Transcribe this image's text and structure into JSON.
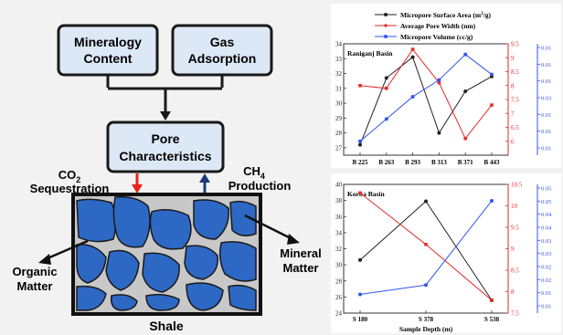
{
  "flowchart": {
    "box_mineralogy": [
      "Mineralogy",
      "Content"
    ],
    "box_gas": [
      "Gas",
      "Adsorption"
    ],
    "box_pore": [
      "Pore",
      "Characteristics"
    ],
    "co2_label": [
      "CO",
      "2",
      "Sequestration"
    ],
    "ch4_label": [
      "CH",
      "4",
      "Production"
    ],
    "organic_label": [
      "Organic",
      "Matter"
    ],
    "mineral_label": [
      "Mineral",
      "Matter"
    ],
    "shale_label": "Shale",
    "colors": {
      "box_fill": "#dce8f5",
      "grain": "#2d68c4",
      "co2_arrow": "#e8221b",
      "ch4_arrow": "#1e3a78",
      "matrix": "#c8c8c8"
    }
  },
  "legend": {
    "entries": [
      {
        "label": "Micropore Surface Area (m",
        "sup": "2",
        "tail": "/g)",
        "color": "#222222"
      },
      {
        "label": "Average Pore Width (nm)",
        "color": "#e52a2a"
      },
      {
        "label": "Micropore Volume (cc/g)",
        "color": "#3355ee"
      }
    ]
  },
  "chart_data": [
    {
      "type": "line",
      "title": "Raniganj Basin",
      "categories": [
        "B 225",
        "B 263",
        "B 293",
        "B 313",
        "B 371",
        "B 443"
      ],
      "series": [
        {
          "name": "Micropore Surface Area (m²/g)",
          "axis": "left",
          "color": "#222222",
          "values": [
            27.2,
            31.7,
            33.1,
            28.0,
            30.8,
            31.8
          ]
        },
        {
          "name": "Average Pore Width (nm)",
          "axis": "right1",
          "color": "#e52a2a",
          "values": [
            8.0,
            7.9,
            9.3,
            8.1,
            6.1,
            7.3
          ]
        },
        {
          "name": "Micropore Volume (cc/g)",
          "axis": "right2",
          "color": "#3355ee",
          "values": [
            0.0065,
            0.0105,
            0.0145,
            0.0175,
            0.0221,
            0.0185
          ]
        }
      ],
      "left_axis": {
        "ticks": [
          "27",
          "28",
          "29",
          "30",
          "31",
          "32",
          "33",
          "34"
        ],
        "range": [
          26.5,
          34
        ]
      },
      "right1_axis": {
        "ticks": [
          "6",
          "6.5",
          "7",
          "7.5",
          "8",
          "8.5",
          "9",
          "9.5"
        ],
        "range": [
          5.5,
          9.5
        ]
      },
      "right2_axis": {
        "ticks": [
          "0.01",
          "0.01",
          "0.01",
          "0.03",
          "0.01",
          "0.01",
          "0.01"
        ],
        "range": [
          0.004,
          0.024
        ]
      }
    },
    {
      "type": "line",
      "title": "Korba Basin",
      "categories": [
        "S 180",
        "S 378",
        "S 538"
      ],
      "xlabel": "Sample Depth (m)",
      "series": [
        {
          "name": "Micropore Surface Area (m²/g)",
          "axis": "left",
          "color": "#222222",
          "values": [
            30.6,
            37.9,
            25.6
          ]
        },
        {
          "name": "Average Pore Width (nm)",
          "axis": "right1",
          "color": "#e52a2a",
          "values": [
            10.3,
            9.1,
            7.8
          ]
        },
        {
          "name": "Micropore Volume (cc/g)",
          "axis": "right2",
          "color": "#3355ee",
          "values": [
            0.008,
            0.012,
            0.048
          ]
        }
      ],
      "left_axis": {
        "ticks": [
          "24",
          "26",
          "28",
          "30",
          "32",
          "34",
          "36",
          "38",
          "40"
        ],
        "range": [
          24,
          40
        ]
      },
      "right1_axis": {
        "ticks": [
          "7.5",
          "8",
          "8.5",
          "9",
          "9.5",
          "10",
          "10.5"
        ],
        "range": [
          7.5,
          10.5
        ]
      },
      "right2_axis": {
        "ticks": [
          "0.01",
          "0.01",
          "0.02",
          "0.02",
          "0.03",
          "0.03",
          "0.04",
          "0.04",
          "0.05",
          "0.05"
        ],
        "range": [
          0.0,
          0.055
        ]
      }
    }
  ]
}
